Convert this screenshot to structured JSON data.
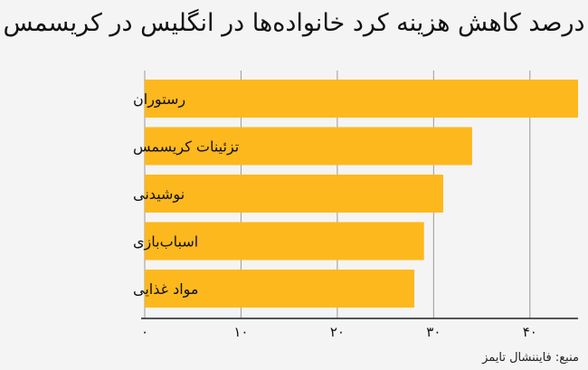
{
  "chart_data": {
    "type": "bar",
    "orientation": "horizontal",
    "title": "درصد کاهش هزینه کرد خانواده‌ها در انگلیس در کریسمس",
    "categories": [
      "رستوران",
      "تزئینات کریسمس",
      "نوشیدنی",
      "اسباب‌بازی",
      "مواد غذایی"
    ],
    "values": [
      45,
      34,
      31,
      29,
      28
    ],
    "xlim": [
      0,
      45
    ],
    "xticks": [
      0,
      10,
      20,
      30,
      40
    ],
    "xtick_labels": [
      "۰",
      "۱۰",
      "۲۰",
      "۳۰",
      "۴۰"
    ],
    "grid": true,
    "bar_color": "#fdb81e",
    "source": "منبع: فایننشال تایمز"
  }
}
